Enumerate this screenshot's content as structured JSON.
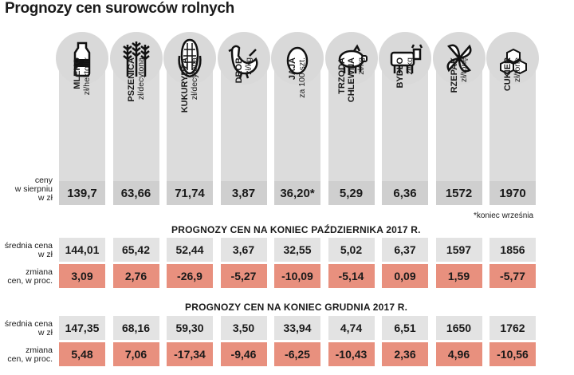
{
  "title": "Prognozy cen surowców rolnych",
  "columns": [
    {
      "name": "MLEKO",
      "unit": "zł/hektolitr",
      "icon": "milk-bottle-icon"
    },
    {
      "name": "PSZENICA",
      "unit": "zł/decytona",
      "icon": "wheat-icon"
    },
    {
      "name": "KUKURYDZA",
      "unit": "zł/decytona",
      "icon": "corn-icon"
    },
    {
      "name": "DRÓB",
      "unit": "zł/kg",
      "icon": "chicken-icon"
    },
    {
      "name": "JAJA",
      "unit": "za 100 szt.",
      "icon": "egg-icon"
    },
    {
      "name": "TRZODA CHLEWNA",
      "unit": "zł/kg",
      "icon": "pig-icon"
    },
    {
      "name": "BYDŁO",
      "unit": "zł/kg",
      "icon": "cow-icon"
    },
    {
      "name": "RZEPAK",
      "unit": "zł/tonę",
      "icon": "rapeseed-flower-icon"
    },
    {
      "name": "CUKIER",
      "unit": "zł/tonę",
      "icon": "sugar-cubes-icon"
    }
  ],
  "current": {
    "label": "ceny w sierpniu w zł",
    "values": [
      "139,7",
      "63,66",
      "71,74",
      "3,87",
      "36,20*",
      "5,29",
      "6,36",
      "1572",
      "1970"
    ],
    "footnote": "*koniec września"
  },
  "october": {
    "title": "PROGNOZY CEN NA KONIEC PAŹDZIERNIKA 2017 R.",
    "avg_label": "średnia cena w zł",
    "avg": [
      "144,01",
      "65,42",
      "52,44",
      "3,67",
      "32,55",
      "5,02",
      "6,37",
      "1597",
      "1856"
    ],
    "chg_label": "zmiana cen, w proc.",
    "chg": [
      "3,09",
      "2,76",
      "-26,9",
      "-5,27",
      "-10,09",
      "-5,14",
      "0,09",
      "1,59",
      "-5,77"
    ]
  },
  "december": {
    "title": "PROGNOZY CEN NA KONIEC GRUDNIA 2017 R.",
    "avg_label": "średnia cena w zł",
    "avg": [
      "147,35",
      "68,16",
      "59,30",
      "3,50",
      "33,94",
      "4,74",
      "6,51",
      "1650",
      "1762"
    ],
    "chg_label": "zmiana cen, w proc.",
    "chg": [
      "5,48",
      "7,06",
      "-17,34",
      "-9,46",
      "-6,25",
      "-10,43",
      "2,36",
      "4,96",
      "-10,56"
    ]
  }
}
